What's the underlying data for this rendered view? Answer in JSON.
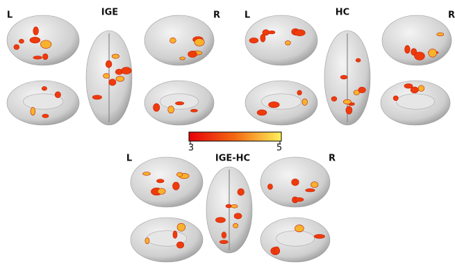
{
  "panels": [
    {
      "title": "IGE",
      "left": "L",
      "right": "R"
    },
    {
      "title": "HC",
      "left": "L",
      "right": "R"
    },
    {
      "title": "IGE-HC",
      "left": "L",
      "right": "R"
    }
  ],
  "colorbar": {
    "ticks": [
      "3",
      "5"
    ]
  }
}
